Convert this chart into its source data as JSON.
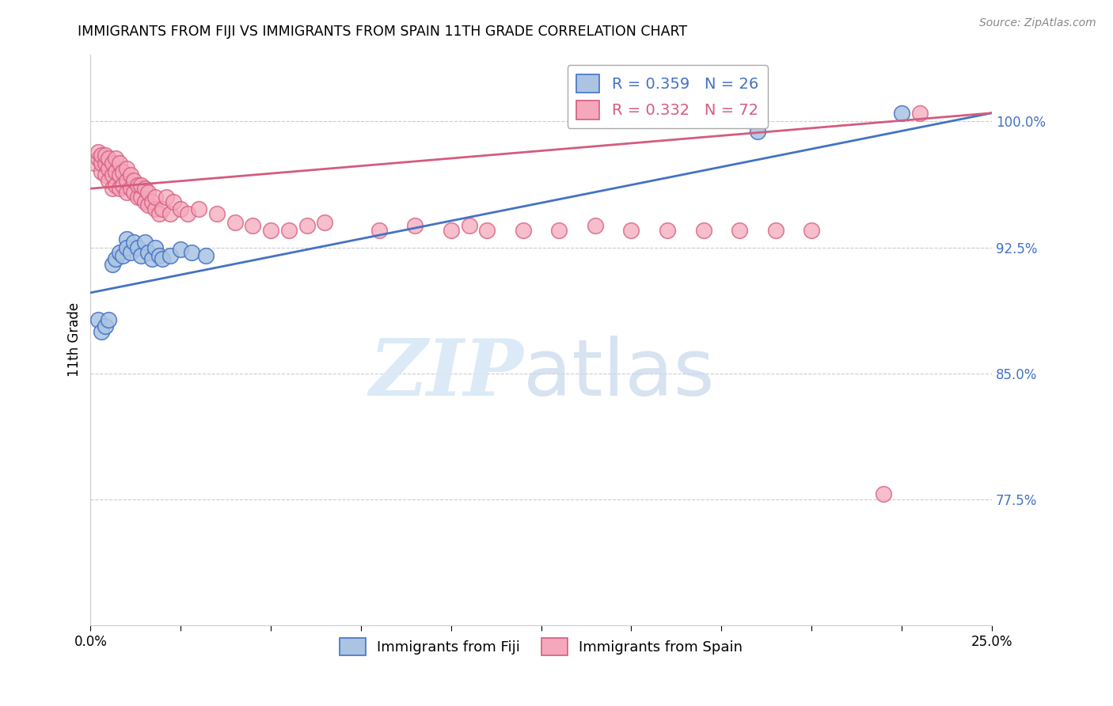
{
  "title": "IMMIGRANTS FROM FIJI VS IMMIGRANTS FROM SPAIN 11TH GRADE CORRELATION CHART",
  "source": "Source: ZipAtlas.com",
  "ylabel": "11th Grade",
  "ytick_labels": [
    "100.0%",
    "92.5%",
    "85.0%",
    "77.5%"
  ],
  "ytick_values": [
    1.0,
    0.925,
    0.85,
    0.775
  ],
  "xmin": 0.0,
  "xmax": 0.25,
  "ymin": 0.7,
  "ymax": 1.04,
  "legend_fiji_R": "R = 0.359",
  "legend_fiji_N": "N = 26",
  "legend_spain_R": "R = 0.332",
  "legend_spain_N": "N = 72",
  "fiji_color": "#aac4e2",
  "spain_color": "#f5a8bc",
  "fiji_line_color": "#4472c4",
  "spain_line_color": "#d45c7e",
  "fiji_x": [
    0.002,
    0.003,
    0.004,
    0.005,
    0.006,
    0.007,
    0.008,
    0.009,
    0.01,
    0.01,
    0.011,
    0.012,
    0.013,
    0.014,
    0.015,
    0.016,
    0.017,
    0.018,
    0.019,
    0.02,
    0.022,
    0.025,
    0.028,
    0.032,
    0.185,
    0.225
  ],
  "fiji_y": [
    0.882,
    0.875,
    0.878,
    0.882,
    0.915,
    0.918,
    0.922,
    0.92,
    0.93,
    0.925,
    0.922,
    0.928,
    0.925,
    0.92,
    0.928,
    0.922,
    0.918,
    0.925,
    0.92,
    0.918,
    0.92,
    0.924,
    0.922,
    0.92,
    0.994,
    1.005
  ],
  "spain_x": [
    0.001,
    0.002,
    0.002,
    0.003,
    0.003,
    0.003,
    0.004,
    0.004,
    0.004,
    0.005,
    0.005,
    0.005,
    0.006,
    0.006,
    0.006,
    0.007,
    0.007,
    0.007,
    0.008,
    0.008,
    0.008,
    0.009,
    0.009,
    0.01,
    0.01,
    0.01,
    0.011,
    0.011,
    0.012,
    0.012,
    0.013,
    0.013,
    0.014,
    0.014,
    0.015,
    0.015,
    0.016,
    0.016,
    0.017,
    0.018,
    0.018,
    0.019,
    0.02,
    0.021,
    0.022,
    0.023,
    0.025,
    0.027,
    0.03,
    0.035,
    0.04,
    0.045,
    0.05,
    0.055,
    0.06,
    0.065,
    0.08,
    0.09,
    0.1,
    0.105,
    0.11,
    0.12,
    0.13,
    0.14,
    0.15,
    0.16,
    0.17,
    0.18,
    0.19,
    0.2,
    0.22,
    0.23
  ],
  "spain_y": [
    0.975,
    0.978,
    0.982,
    0.97,
    0.975,
    0.98,
    0.968,
    0.975,
    0.98,
    0.965,
    0.972,
    0.978,
    0.96,
    0.968,
    0.975,
    0.962,
    0.97,
    0.978,
    0.96,
    0.968,
    0.975,
    0.962,
    0.97,
    0.958,
    0.965,
    0.972,
    0.96,
    0.968,
    0.958,
    0.965,
    0.955,
    0.962,
    0.955,
    0.962,
    0.952,
    0.96,
    0.95,
    0.958,
    0.952,
    0.948,
    0.955,
    0.945,
    0.948,
    0.955,
    0.945,
    0.952,
    0.948,
    0.945,
    0.948,
    0.945,
    0.94,
    0.938,
    0.935,
    0.935,
    0.938,
    0.94,
    0.935,
    0.938,
    0.935,
    0.938,
    0.935,
    0.935,
    0.935,
    0.938,
    0.935,
    0.935,
    0.935,
    0.935,
    0.935,
    0.935,
    0.778,
    1.005
  ],
  "fiji_line_x": [
    0.0,
    0.25
  ],
  "fiji_line_y": [
    0.898,
    1.005
  ],
  "spain_line_x": [
    0.0,
    0.25
  ],
  "spain_line_y": [
    0.96,
    1.005
  ],
  "xtick_positions": [
    0.0,
    0.025,
    0.05,
    0.075,
    0.1,
    0.125,
    0.15,
    0.175,
    0.2,
    0.225,
    0.25
  ],
  "xtick_show_labels": [
    0,
    10
  ],
  "xtick_label_left": "0.0%",
  "xtick_label_right": "25.0%"
}
